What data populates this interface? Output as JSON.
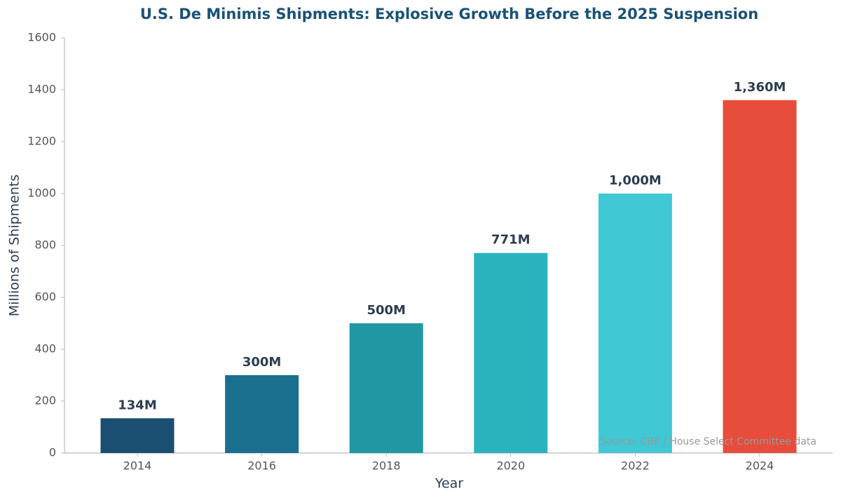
{
  "chart_data": {
    "type": "bar",
    "title": "U.S. De Minimis Shipments: Explosive Growth Before the 2025 Suspension",
    "x_label": "Year",
    "y_label": "Millions of Shipments",
    "categories": [
      "2014",
      "2016",
      "2018",
      "2020",
      "2022",
      "2024"
    ],
    "values": [
      134,
      300,
      500,
      771,
      1000,
      1360
    ],
    "value_labels": [
      "134M",
      "300M",
      "500M",
      "771M",
      "1,000M",
      "1,360M"
    ],
    "colors": [
      "#1b4f72",
      "#1a6e8e",
      "#2097a3",
      "#2ab3bc",
      "#40c8d4",
      "#e74c3c"
    ],
    "ylim": [
      0,
      1600
    ],
    "yticks": [
      0,
      200,
      400,
      600,
      800,
      1000,
      1200,
      1400,
      1600
    ],
    "grid": false,
    "annotation": "Source: CBP / House Select Committee data"
  }
}
